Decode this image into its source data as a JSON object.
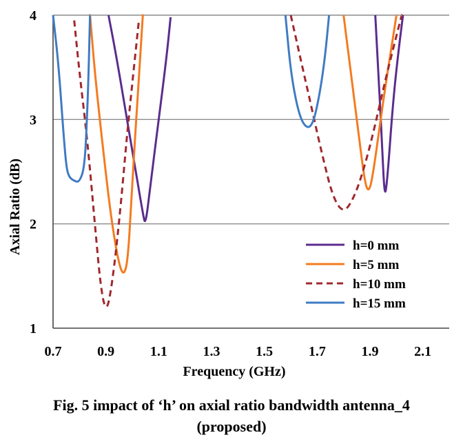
{
  "chart_data": {
    "type": "line",
    "title": "",
    "xlabel": "Frequency (GHz)",
    "ylabel": "Axial Ratio (dB)",
    "xlim": [
      0.7,
      2.2
    ],
    "ylim": [
      1,
      4
    ],
    "x_ticks": [
      "0.7",
      "0.9",
      "1.1",
      "1.3",
      "1.5",
      "1.7",
      "1.9",
      "2.1"
    ],
    "y_ticks": [
      "1",
      "2",
      "3",
      "4"
    ],
    "grid": "horizontal",
    "legend_position": "right",
    "series": [
      {
        "name": "h=0 mm",
        "color": "#5B2C8E",
        "dash": "solid",
        "segments": [
          [
            [
              0.91,
              4.0
            ],
            [
              0.94,
              3.6
            ],
            [
              0.98,
              3.0
            ],
            [
              1.01,
              2.55
            ],
            [
              1.04,
              2.1
            ],
            [
              1.05,
              1.98
            ],
            [
              1.07,
              2.4
            ],
            [
              1.1,
              3.0
            ],
            [
              1.13,
              3.6
            ],
            [
              1.145,
              3.98
            ]
          ],
          [
            [
              1.92,
              4.0
            ],
            [
              1.935,
              3.3
            ],
            [
              1.945,
              2.8
            ],
            [
              1.955,
              2.25
            ],
            [
              1.965,
              2.4
            ],
            [
              1.985,
              3.1
            ],
            [
              2.005,
              3.6
            ],
            [
              2.025,
              4.0
            ]
          ]
        ]
      },
      {
        "name": "h=5 mm",
        "color": "#F47B20",
        "dash": "solid",
        "segments": [
          [
            [
              0.84,
              4.0
            ],
            [
              0.86,
              3.4
            ],
            [
              0.89,
              2.7
            ],
            [
              0.92,
              2.05
            ],
            [
              0.95,
              1.6
            ],
            [
              0.97,
              1.5
            ],
            [
              0.985,
              1.7
            ],
            [
              1.0,
              2.4
            ],
            [
              1.02,
              3.2
            ],
            [
              1.04,
              4.0
            ]
          ],
          [
            [
              1.8,
              4.0
            ],
            [
              1.82,
              3.6
            ],
            [
              1.85,
              3.0
            ],
            [
              1.88,
              2.4
            ],
            [
              1.895,
              2.3
            ],
            [
              1.91,
              2.45
            ],
            [
              1.935,
              2.9
            ],
            [
              1.96,
              3.35
            ],
            [
              1.985,
              3.75
            ],
            [
              2.0,
              4.0
            ]
          ]
        ]
      },
      {
        "name": "h=10 mm",
        "color": "#A0282D",
        "dash": "dashed",
        "segments": [
          [
            [
              0.78,
              3.95
            ],
            [
              0.8,
              3.45
            ],
            [
              0.83,
              2.8
            ],
            [
              0.86,
              1.95
            ],
            [
              0.88,
              1.4
            ],
            [
              0.9,
              1.15
            ],
            [
              0.92,
              1.35
            ],
            [
              0.95,
              2.0
            ],
            [
              0.98,
              2.85
            ],
            [
              1.0,
              3.35
            ],
            [
              1.025,
              3.95
            ]
          ],
          [
            [
              1.6,
              4.0
            ],
            [
              1.64,
              3.55
            ],
            [
              1.68,
              3.1
            ],
            [
              1.72,
              2.65
            ],
            [
              1.76,
              2.25
            ],
            [
              1.8,
              2.1
            ],
            [
              1.84,
              2.25
            ],
            [
              1.88,
              2.55
            ],
            [
              1.92,
              2.95
            ],
            [
              1.96,
              3.4
            ],
            [
              2.0,
              3.8
            ],
            [
              2.02,
              4.0
            ]
          ]
        ]
      },
      {
        "name": "h=15 mm",
        "color": "#3F7BC4",
        "dash": "solid",
        "segments": [
          [
            [
              0.7,
              4.0
            ],
            [
              0.72,
              3.55
            ],
            [
              0.74,
              2.85
            ],
            [
              0.75,
              2.55
            ],
            [
              0.76,
              2.45
            ],
            [
              0.78,
              2.41
            ],
            [
              0.8,
              2.4
            ],
            [
              0.82,
              2.55
            ],
            [
              0.83,
              3.1
            ],
            [
              0.835,
              3.5
            ],
            [
              0.84,
              4.0
            ]
          ],
          [
            [
              1.58,
              4.0
            ],
            [
              1.6,
              3.45
            ],
            [
              1.63,
              3.05
            ],
            [
              1.66,
              2.91
            ],
            [
              1.685,
              2.96
            ],
            [
              1.71,
              3.25
            ],
            [
              1.73,
              3.6
            ],
            [
              1.745,
              4.0
            ]
          ]
        ]
      }
    ]
  },
  "caption": {
    "line1": "Fig. 5 impact of ‘h’ on axial ratio bandwidth antenna_4",
    "line2": "(proposed)"
  }
}
